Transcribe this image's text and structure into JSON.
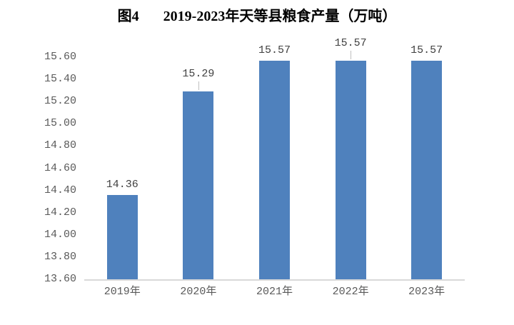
{
  "title": {
    "prefix": "图4",
    "text": "2019-2023年天等县粮食产量（万吨）"
  },
  "chart_data": {
    "type": "bar",
    "title": "图4 2019-2023年天等县粮食产量（万吨）",
    "categories": [
      "2019年",
      "2020年",
      "2021年",
      "2022年",
      "2023年"
    ],
    "values": [
      14.36,
      15.29,
      15.57,
      15.57,
      15.57
    ],
    "data_labels": [
      "14.36",
      "15.29",
      "15.57",
      "15.57",
      "15.57"
    ],
    "xlabel": "",
    "ylabel": "",
    "ylim": [
      13.6,
      15.6
    ],
    "ytick_step": 0.2,
    "yticks": [
      "15.60",
      "15.40",
      "15.20",
      "15.00",
      "14.80",
      "14.60",
      "14.40",
      "14.20",
      "14.00",
      "13.80",
      "13.60"
    ],
    "grid": false,
    "legend": "none",
    "label_leader_lines": [
      false,
      true,
      false,
      true,
      false
    ],
    "colors": {
      "bar": "#4f81bd",
      "axis_line": "#d9d9d9",
      "tick_label": "#595959",
      "data_label": "#404040",
      "leader_line": "#bfbfbf",
      "title": "#000000"
    }
  }
}
